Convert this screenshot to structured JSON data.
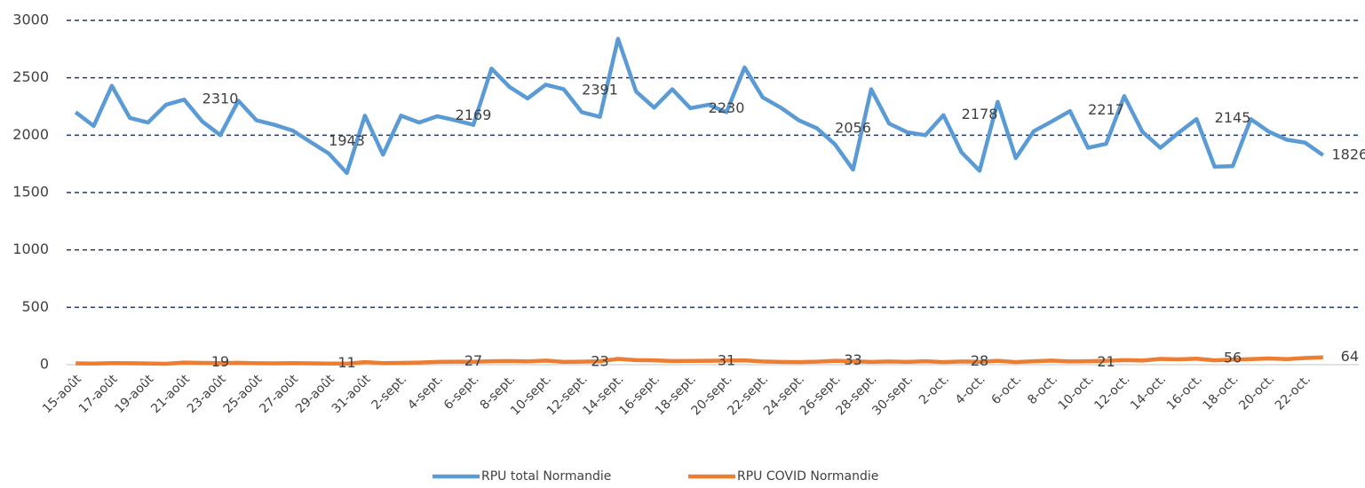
{
  "chart_data": {
    "type": "line",
    "categories": [
      "15-août",
      null,
      "17-août",
      null,
      "19-août",
      null,
      "21-août",
      null,
      "23-août",
      null,
      "25-août",
      null,
      "27-août",
      null,
      "29-août",
      null,
      "31-août",
      null,
      "2-sept.",
      null,
      "4-sept.",
      null,
      "6-sept.",
      null,
      "8-sept.",
      null,
      "10-sept.",
      null,
      "12-sept.",
      null,
      "14-sept.",
      null,
      "16-sept.",
      null,
      "18-sept.",
      null,
      "20-sept.",
      null,
      "22-sept.",
      null,
      "24-sept.",
      null,
      "26-sept.",
      null,
      "28-sept.",
      null,
      "30-sept.",
      null,
      "2-oct.",
      null,
      "4-oct.",
      null,
      "6-oct.",
      null,
      "8-oct.",
      null,
      "10-oct.",
      null,
      "12-oct.",
      null,
      "14-oct.",
      null,
      "16-oct.",
      null,
      "18-oct.",
      null,
      "20-oct.",
      null,
      "22-oct.",
      null
    ],
    "series": [
      {
        "name": "RPU total Normandie",
        "color": "#5b9bd5",
        "values": [
          2200,
          2080,
          2430,
          2150,
          2110,
          2265,
          2310,
          2120,
          2000,
          2300,
          2130,
          2090,
          2040,
          1940,
          1840,
          1670,
          2170,
          1830,
          2170,
          2110,
          2165,
          2130,
          2090,
          2580,
          2420,
          2320,
          2440,
          2400,
          2200,
          2160,
          2840,
          2380,
          2240,
          2400,
          2235,
          2265,
          2200,
          2590,
          2330,
          2240,
          2130,
          2060,
          1920,
          1700,
          2400,
          2100,
          2025,
          2000,
          2175,
          1850,
          1690,
          2290,
          1800,
          2035,
          2120,
          2210,
          1890,
          1925,
          2340,
          2030,
          1890,
          2020,
          2140,
          1725,
          1730,
          2140,
          2030,
          1960,
          1935,
          1825
        ],
        "labels": [
          2310,
          1943,
          2169,
          2391,
          2230,
          2056,
          2178,
          2217,
          2145,
          1826
        ]
      },
      {
        "name": "RPU COVID Normandie",
        "color": "#ed7d31",
        "values": [
          12,
          10,
          14,
          13,
          11,
          8,
          18,
          15,
          14,
          16,
          13,
          12,
          14,
          12,
          10,
          9,
          22,
          14,
          15,
          18,
          24,
          26,
          25,
          30,
          32,
          28,
          36,
          24,
          26,
          30,
          50,
          40,
          38,
          32,
          33,
          34,
          36,
          38,
          28,
          24,
          22,
          26,
          34,
          30,
          24,
          28,
          24,
          30,
          22,
          28,
          25,
          34,
          22,
          30,
          36,
          28,
          30,
          34,
          40,
          36,
          50,
          46,
          52,
          38,
          44,
          48,
          54,
          48,
          58,
          64
        ],
        "labels": [
          19,
          11,
          27,
          23,
          31,
          33,
          28,
          21,
          56,
          64
        ]
      }
    ],
    "ylim": [
      0,
      3000
    ],
    "yticks": [
      0,
      500,
      1000,
      1500,
      2000,
      2500,
      3000
    ],
    "grid": true,
    "legend": "bottom"
  }
}
